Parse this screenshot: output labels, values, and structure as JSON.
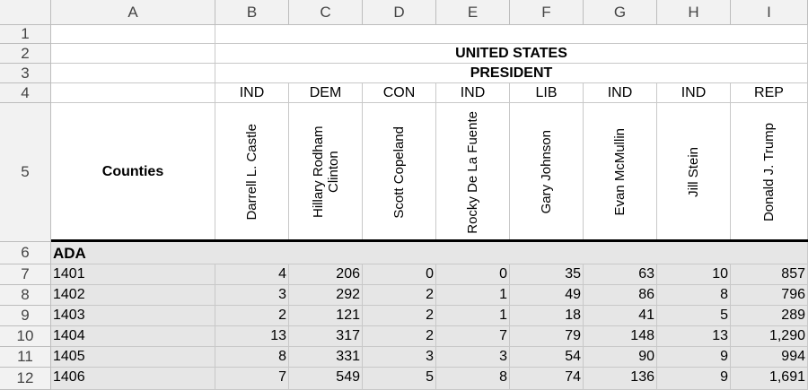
{
  "columns": [
    "A",
    "B",
    "C",
    "D",
    "E",
    "F",
    "G",
    "H",
    "I"
  ],
  "row_numbers": [
    "1",
    "2",
    "3",
    "4",
    "5",
    "6",
    "7",
    "8",
    "9",
    "10",
    "11",
    "12"
  ],
  "title": "UNITED STATES",
  "subtitle": "PRESIDENT",
  "counties_label": "Counties",
  "parties": [
    "IND",
    "DEM",
    "CON",
    "IND",
    "LIB",
    "IND",
    "IND",
    "REP"
  ],
  "candidates": [
    "Darrell L. Castle",
    "Hillary Rodham Clinton",
    "Scott Copeland",
    "Rocky De La Fuente",
    "Gary Johnson",
    "Evan McMullin",
    "Jill Stein",
    "Donald J. Trump"
  ],
  "group_label": "ADA",
  "rows": [
    {
      "precinct": "1401",
      "values": [
        "4",
        "206",
        "0",
        "0",
        "35",
        "63",
        "10",
        "857"
      ]
    },
    {
      "precinct": "1402",
      "values": [
        "3",
        "292",
        "2",
        "1",
        "49",
        "86",
        "8",
        "796"
      ]
    },
    {
      "precinct": "1403",
      "values": [
        "2",
        "121",
        "2",
        "1",
        "18",
        "41",
        "5",
        "289"
      ]
    },
    {
      "precinct": "1404",
      "values": [
        "13",
        "317",
        "2",
        "7",
        "79",
        "148",
        "13",
        "1,290"
      ]
    },
    {
      "precinct": "1405",
      "values": [
        "8",
        "331",
        "3",
        "3",
        "54",
        "90",
        "9",
        "994"
      ]
    },
    {
      "precinct": "1406",
      "values": [
        "7",
        "549",
        "5",
        "8",
        "74",
        "136",
        "9",
        "1,691"
      ]
    }
  ]
}
